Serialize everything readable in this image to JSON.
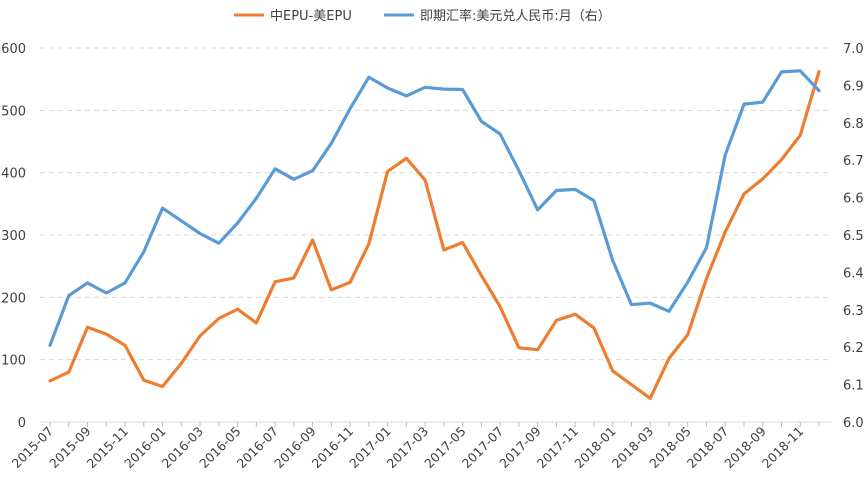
{
  "chart_data": {
    "type": "line",
    "title": "",
    "xlabel": "",
    "ylabel": "",
    "y2label": "",
    "ylim": [
      0,
      600
    ],
    "y2lim": [
      6.0,
      7.0
    ],
    "grid": true,
    "legend_position": "top",
    "x_tick_labels": [
      "2015-07",
      "2015-09",
      "2015-11",
      "2016-01",
      "2016-03",
      "2016-05",
      "2016-07",
      "2016-09",
      "2016-11",
      "2017-01",
      "2017-03",
      "2017-05",
      "2017-07",
      "2017-09",
      "2017-11",
      "2018-01",
      "2018-03",
      "2018-05",
      "2018-07",
      "2018-09",
      "2018-11"
    ],
    "y_ticks": [
      0,
      100,
      200,
      300,
      400,
      500,
      600
    ],
    "y2_ticks": [
      "6.0",
      "6.1",
      "6.2",
      "6.3",
      "6.4",
      "6.5",
      "6.6",
      "6.7",
      "6.8",
      "6.9",
      "7.0"
    ],
    "x": [
      "2015-07",
      "2015-08",
      "2015-09",
      "2015-10",
      "2015-11",
      "2015-12",
      "2016-01",
      "2016-02",
      "2016-03",
      "2016-04",
      "2016-05",
      "2016-06",
      "2016-07",
      "2016-08",
      "2016-09",
      "2016-10",
      "2016-11",
      "2016-12",
      "2017-01",
      "2017-02",
      "2017-03",
      "2017-04",
      "2017-05",
      "2017-06",
      "2017-07",
      "2017-08",
      "2017-09",
      "2017-10",
      "2017-11",
      "2017-12",
      "2018-01",
      "2018-02",
      "2018-03",
      "2018-04",
      "2018-05",
      "2018-06",
      "2018-07",
      "2018-08",
      "2018-09",
      "2018-10",
      "2018-11",
      "2018-12"
    ],
    "series": [
      {
        "name": "中EPU-美EPU",
        "axis": "left",
        "color": "#ED7D31",
        "values": [
          66,
          80,
          152,
          141,
          123,
          67,
          57,
          94,
          138,
          166,
          181,
          159,
          225,
          231,
          292,
          212,
          224,
          286,
          402,
          423,
          388,
          276,
          288,
          235,
          185,
          119,
          116,
          163,
          173,
          151,
          82,
          60,
          38,
          102,
          140,
          230,
          305,
          366,
          390,
          421,
          460,
          562
        ]
      },
      {
        "name": "即期汇率:美元兑人民币:月（右）",
        "axis": "right",
        "color": "#5B9BD5",
        "values": [
          6.205,
          6.338,
          6.372,
          6.345,
          6.372,
          6.455,
          6.572,
          6.538,
          6.504,
          6.478,
          6.532,
          6.598,
          6.677,
          6.649,
          6.672,
          6.745,
          6.838,
          6.922,
          6.893,
          6.872,
          6.895,
          6.89,
          6.889,
          6.804,
          6.77,
          6.672,
          6.567,
          6.619,
          6.622,
          6.592,
          6.432,
          6.314,
          6.318,
          6.296,
          6.374,
          6.466,
          6.714,
          6.85,
          6.855,
          6.936,
          6.939,
          6.886
        ]
      }
    ]
  }
}
